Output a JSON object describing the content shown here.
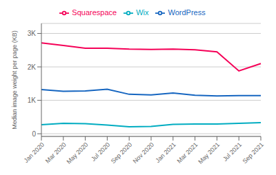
{
  "chart_data": {
    "type": "line",
    "ylabel": "Median image weight per page (KB)",
    "categories": [
      "Jan 2020",
      "Mar 2020",
      "May 2020",
      "Jul 2020",
      "Sep 2020",
      "Nov 2020",
      "Jan 2021",
      "Mar 2021",
      "May 2021",
      "Jul 2021",
      "Sep 2021"
    ],
    "series": [
      {
        "name": "WordPress",
        "color": "#1565c0",
        "values": [
          1320,
          1270,
          1280,
          1330,
          1180,
          1160,
          1220,
          1150,
          1130,
          1140,
          1140
        ]
      },
      {
        "name": "Wix",
        "color": "#00acc1",
        "values": [
          270,
          310,
          300,
          260,
          210,
          220,
          280,
          290,
          290,
          310,
          330
        ]
      },
      {
        "name": "Squarespace",
        "color": "#f50057",
        "values": [
          2720,
          2640,
          2560,
          2560,
          2530,
          2520,
          2530,
          2510,
          2450,
          1880,
          2100
        ]
      }
    ],
    "ylim": [
      -80,
      3300
    ],
    "yticks": [
      0,
      {
        "value": 1000,
        "label": "1K"
      },
      {
        "value": 2000,
        "label": "2K"
      },
      {
        "value": 3000,
        "label": "3K"
      }
    ],
    "grid": true,
    "legend": "top"
  }
}
